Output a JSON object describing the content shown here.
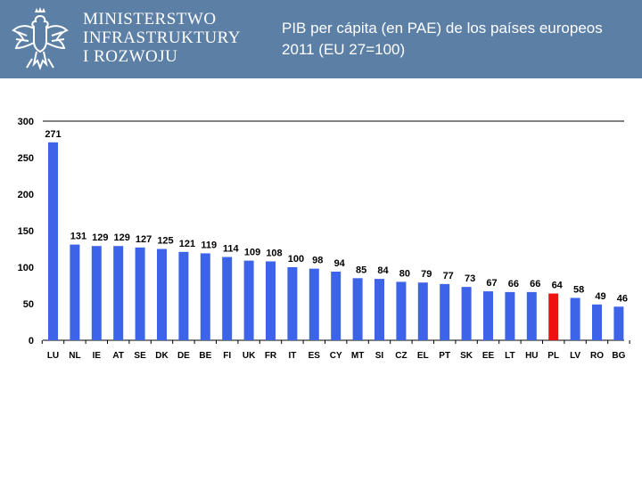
{
  "header": {
    "ministry_line1": "MINISTERSTWO",
    "ministry_line2": "INFRASTRUKTURY",
    "ministry_line3": "I ROZWOJU",
    "emblem_icon": "eagle-emblem-icon",
    "background_color": "#5c7fa6"
  },
  "chart_data": {
    "type": "bar",
    "title": "PIB per cápita (en PAE) de los países europeos 2011 (EU 27=100)",
    "xlabel": "",
    "ylabel": "",
    "ylim": [
      0,
      300
    ],
    "yticks": [
      0,
      50,
      100,
      150,
      200,
      250,
      300
    ],
    "grid": false,
    "legend": "none",
    "categories": [
      "LU",
      "NL",
      "IE",
      "AT",
      "SE",
      "DK",
      "DE",
      "BE",
      "FI",
      "UK",
      "FR",
      "IT",
      "ES",
      "CY",
      "MT",
      "SI",
      "CZ",
      "EL",
      "PT",
      "SK",
      "EE",
      "LT",
      "HU",
      "PL",
      "LV",
      "RO",
      "BG"
    ],
    "values": [
      271,
      131,
      129,
      129,
      127,
      125,
      121,
      119,
      114,
      109,
      108,
      100,
      98,
      94,
      85,
      84,
      80,
      79,
      77,
      73,
      67,
      66,
      66,
      64,
      58,
      49,
      46
    ],
    "bar_color": "#3d63e8",
    "highlight_category": "PL",
    "highlight_color": "#ee1111"
  }
}
